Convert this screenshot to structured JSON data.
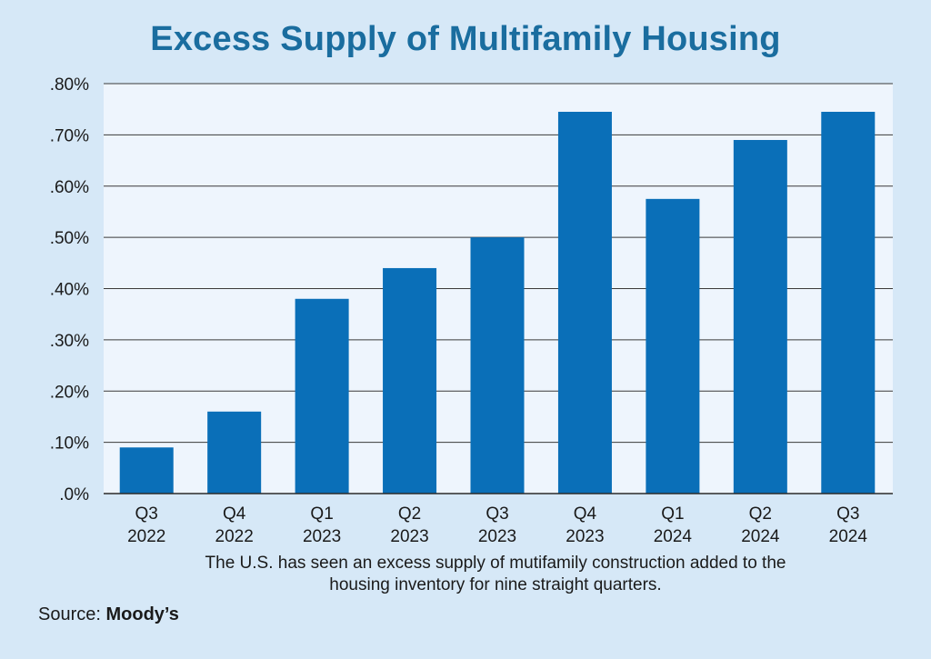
{
  "chart_data": {
    "type": "bar",
    "title": "Excess Supply of Multifamily Housing",
    "categories": [
      [
        "Q3",
        "2022"
      ],
      [
        "Q4",
        "2022"
      ],
      [
        "Q1",
        "2023"
      ],
      [
        "Q2",
        "2023"
      ],
      [
        "Q3",
        "2023"
      ],
      [
        "Q4",
        "2023"
      ],
      [
        "Q1",
        "2024"
      ],
      [
        "Q2",
        "2024"
      ],
      [
        "Q3",
        "2024"
      ]
    ],
    "values": [
      0.09,
      0.16,
      0.38,
      0.44,
      0.5,
      0.745,
      0.575,
      0.69,
      0.745
    ],
    "yticks": [
      0,
      0.1,
      0.2,
      0.3,
      0.4,
      0.5,
      0.6,
      0.7,
      0.8
    ],
    "ytick_labels": [
      ".0%",
      ".10%",
      ".20%",
      ".30%",
      ".40%",
      ".50%",
      ".60%",
      ".70%",
      ".80%"
    ],
    "ylim": [
      0,
      0.8
    ],
    "xlabel": "",
    "ylabel": "",
    "grid": true,
    "colors": {
      "bar": "#0a6fb8",
      "plot_bg": "#eef5fd",
      "grid": "#3a3a3a"
    }
  },
  "caption": "The U.S. has seen an excess supply of mutifamily construction added to the housing inventory for nine straight quarters.",
  "source": {
    "label": "Source:",
    "name": "Moody’s"
  }
}
